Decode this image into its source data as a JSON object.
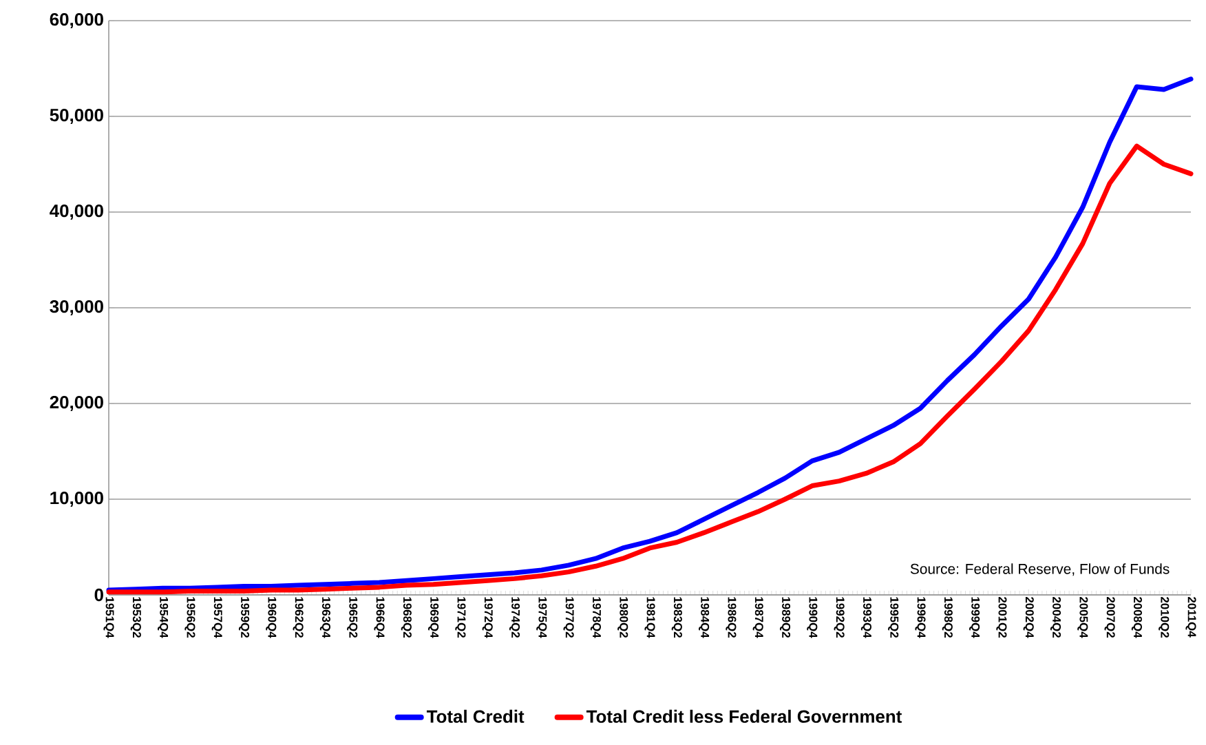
{
  "chart_data": {
    "type": "line",
    "ylim": [
      0,
      60000
    ],
    "categories": [
      "1951Q4",
      "1953Q2",
      "1954Q4",
      "1956Q2",
      "1957Q4",
      "1959Q2",
      "1960Q4",
      "1962Q2",
      "1963Q4",
      "1965Q2",
      "1966Q4",
      "1968Q2",
      "1969Q4",
      "1971Q2",
      "1972Q4",
      "1974Q2",
      "1975Q4",
      "1977Q2",
      "1978Q4",
      "1980Q2",
      "1981Q4",
      "1983Q2",
      "1984Q4",
      "1986Q2",
      "1987Q4",
      "1989Q2",
      "1990Q4",
      "1992Q2",
      "1993Q4",
      "1995Q2",
      "1996Q4",
      "1998Q2",
      "1999Q4",
      "2001Q2",
      "2002Q4",
      "2004Q2",
      "2005Q4",
      "2007Q2",
      "2008Q4",
      "2010Q2",
      "2011Q4"
    ],
    "yticks": [
      0,
      {
        "value": 10000,
        "label": "10,000"
      },
      {
        "value": 20000,
        "label": "20,000"
      },
      {
        "value": 30000,
        "label": "30,000"
      },
      {
        "value": 40000,
        "label": "40,000"
      },
      {
        "value": 50000,
        "label": "50,000"
      },
      {
        "value": 60000,
        "label": "60,000"
      }
    ],
    "grid": "y",
    "legend": "bottom",
    "marker": "none",
    "line_style": "solid",
    "annotations": [
      "Source:  Federal Reserve, Flow of Funds"
    ],
    "series": [
      {
        "name": "Total Credit",
        "color": "#0000ff",
        "values": [
          500,
          600,
          700,
          700,
          800,
          900,
          900,
          1000,
          1100,
          1200,
          1300,
          1500,
          1700,
          1900,
          2100,
          2300,
          2600,
          3100,
          3800,
          4900,
          5600,
          6500,
          7900,
          9300,
          10700,
          12200,
          14000,
          14900,
          16300,
          17700,
          19500,
          22400,
          25100,
          28100,
          30900,
          35300,
          40500,
          47300,
          53100,
          52800,
          53900
        ]
      },
      {
        "name": "Total Credit less Federal Government",
        "color": "#ff0000",
        "values": [
          300,
          300,
          300,
          400,
          400,
          400,
          500,
          500,
          600,
          700,
          800,
          1000,
          1100,
          1300,
          1500,
          1700,
          2000,
          2400,
          3000,
          3800,
          4900,
          5500,
          6500,
          7600,
          8700,
          10000,
          11400,
          11900,
          12700,
          13900,
          15800,
          18700,
          21500,
          24400,
          27600,
          31900,
          36700,
          43000,
          46900,
          45000,
          44000
        ]
      }
    ]
  }
}
